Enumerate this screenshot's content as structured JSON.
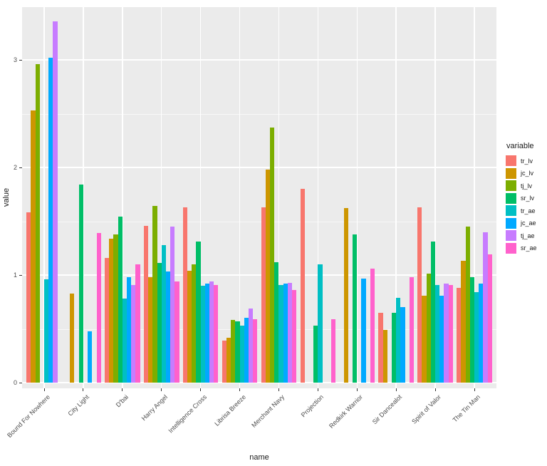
{
  "figure": {
    "background": "#FFFFFF",
    "panel_background": "#EBEBEB",
    "gridline_color": "#FFFFFF",
    "tick_color": "#333333",
    "axis_text_color": "#4d4d4d"
  },
  "chart_data": {
    "type": "bar",
    "grouping": "dodged",
    "title": "",
    "xlabel": "name",
    "ylabel": "value",
    "ylim": [
      0,
      3.4
    ],
    "grid": true,
    "legend_position": "right",
    "legend_title": "variable",
    "y_major_ticks": [
      0,
      1,
      2,
      3
    ],
    "y_tick_labels": [
      "0",
      "1",
      "2",
      "3"
    ],
    "y_minor_gridlines": [
      0.5,
      1.5,
      2.5
    ],
    "categories": [
      "Bound For Nowhere",
      "City Light",
      "D'bai",
      "Harry Angel",
      "Intelligence Cross",
      "Librisa Breeze",
      "Merchant Navy",
      "Projection",
      "Redkirk Warrior",
      "Sir Dancealot",
      "Spirit of Valor",
      "The Tin Man"
    ],
    "series": [
      {
        "name": "tr_lv",
        "color": "#F8766D",
        "values": [
          1.58,
          0,
          1.16,
          1.46,
          1.63,
          0.39,
          1.63,
          1.8,
          0,
          0.65,
          1.63,
          0.88
        ]
      },
      {
        "name": "jc_lv",
        "color": "#CD9600",
        "values": [
          2.53,
          0.83,
          1.34,
          0.98,
          1.04,
          0.42,
          1.98,
          0,
          1.62,
          0.49,
          0.81,
          1.13
        ]
      },
      {
        "name": "tj_lv",
        "color": "#7CAE00",
        "values": [
          2.96,
          0,
          1.38,
          1.64,
          1.1,
          0.58,
          2.37,
          0,
          0,
          0,
          1.01,
          1.45
        ]
      },
      {
        "name": "sr_lv",
        "color": "#00BE67",
        "values": [
          0,
          1.84,
          1.54,
          1.11,
          1.31,
          0.57,
          1.12,
          0.53,
          1.38,
          0.65,
          1.31,
          0.98
        ]
      },
      {
        "name": "tr_ae",
        "color": "#00BFC4",
        "values": [
          0.96,
          0,
          0.78,
          1.28,
          0.9,
          0.53,
          0.91,
          1.1,
          0,
          0.79,
          0.91,
          0.84
        ]
      },
      {
        "name": "jc_ae",
        "color": "#00A9FF",
        "values": [
          3.02,
          0.48,
          0.98,
          1.03,
          0.92,
          0.6,
          0.92,
          0,
          0.97,
          0.7,
          0.81,
          0.92
        ]
      },
      {
        "name": "tj_ae",
        "color": "#C77CFF",
        "values": [
          3.36,
          0,
          0.91,
          1.45,
          0.94,
          0.69,
          0.93,
          0,
          0,
          0,
          0.92,
          1.4
        ]
      },
      {
        "name": "sr_ae",
        "color": "#FF61CC",
        "values": [
          0,
          1.39,
          1.1,
          0.94,
          0.91,
          0.59,
          0.86,
          0.59,
          1.06,
          0.98,
          0.91,
          1.19
        ]
      }
    ]
  }
}
